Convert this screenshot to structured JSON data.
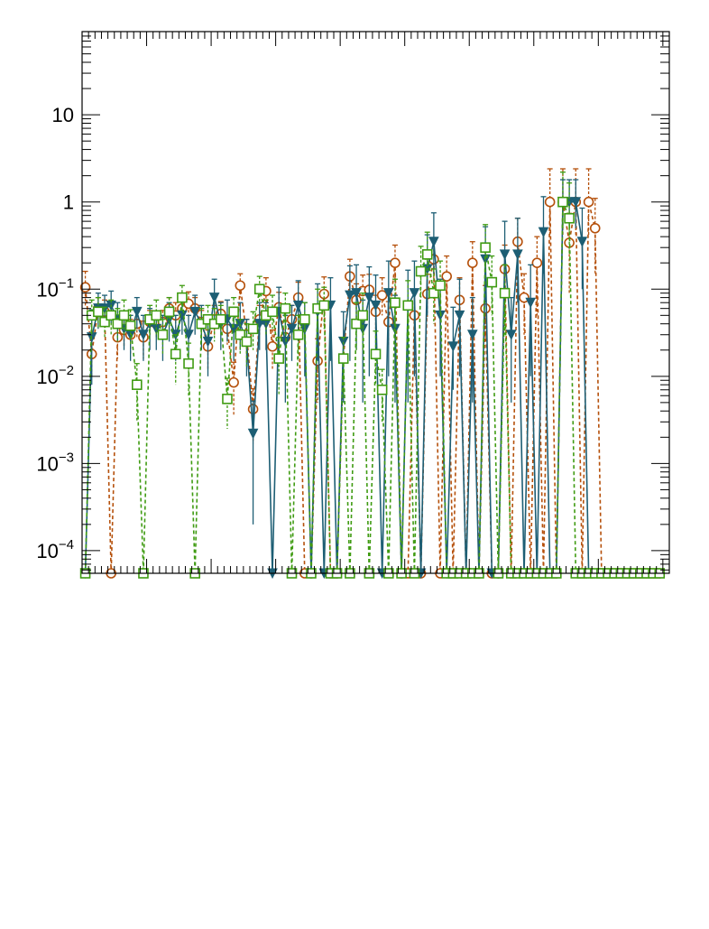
{
  "chart_data": {
    "type": "line",
    "title": "",
    "xlabel": "",
    "ylabel": "",
    "xlim": [
      0,
      91
    ],
    "ylim": [
      5.5e-05,
      90
    ],
    "y_scale": "log",
    "grid": false,
    "legend": "none",
    "y_tick_labels": [
      {
        "value": 0.0001,
        "base": "10",
        "exp": "−4"
      },
      {
        "value": 0.001,
        "base": "10",
        "exp": "−3"
      },
      {
        "value": 0.01,
        "base": "10",
        "exp": "−2"
      },
      {
        "value": 0.1,
        "base": "10",
        "exp": "−1"
      },
      {
        "value": 1,
        "base": "1",
        "exp": ""
      },
      {
        "value": 10,
        "base": "10",
        "exp": ""
      }
    ],
    "colors": {
      "series_a": "#b5500b",
      "series_b": "#1d5e74",
      "series_c": "#3f9b12"
    },
    "series": [
      {
        "marker": "open-circle",
        "line": "dashed",
        "color": "#b5500b",
        "x": [
          0.5,
          1.5,
          2.5,
          3.5,
          4.5,
          5.5,
          6.5,
          7.5,
          8.5,
          9.5,
          10.5,
          11.5,
          12.5,
          13.5,
          14.5,
          15.5,
          16.5,
          17.5,
          18.5,
          19.5,
          20.5,
          21.5,
          22.5,
          23.5,
          24.5,
          25.5,
          26.5,
          27.5,
          28.5,
          29.5,
          30.5,
          31.5,
          32.5,
          33.5,
          34.5,
          35.5,
          36.5,
          37.5,
          38.5,
          39.5,
          40.5,
          41.5,
          42.5,
          43.5,
          44.5,
          45.5,
          46.5,
          47.5,
          48.5,
          49.5,
          50.5,
          51.5,
          52.5,
          53.5,
          54.5,
          55.5,
          56.5,
          57.5,
          58.5,
          59.5,
          60.5,
          61.5,
          62.5,
          63.5,
          64.5,
          65.5,
          66.5,
          67.5,
          68.5,
          69.5,
          70.5,
          71.5,
          72.5,
          73.5,
          74.5,
          75.5,
          76.5,
          77.5,
          78.5,
          79.5,
          80.5,
          81.5,
          82.5,
          83.5,
          84.5,
          85.5,
          86.5,
          87.5,
          88.5,
          89.5
        ],
        "values": [
          0.105,
          0.018,
          0.06,
          0.055,
          5e-05,
          0.028,
          0.034,
          0.03,
          0.04,
          0.028,
          0.042,
          0.04,
          0.042,
          0.06,
          0.05,
          0.06,
          0.068,
          0.06,
          0.042,
          0.022,
          0.045,
          0.052,
          0.035,
          0.0085,
          0.11,
          0.03,
          0.0042,
          0.045,
          0.095,
          0.022,
          0.062,
          0.028,
          0.045,
          0.08,
          5e-05,
          5e-05,
          0.015,
          0.088,
          5e-05,
          5e-05,
          0.016,
          0.14,
          0.075,
          0.095,
          0.098,
          0.055,
          0.085,
          0.042,
          0.2,
          5e-05,
          5e-05,
          0.05,
          5e-05,
          0.088,
          0.22,
          5e-05,
          0.14,
          5e-05,
          0.075,
          5e-05,
          0.2,
          5e-05,
          0.06,
          5e-05,
          5e-05,
          0.17,
          5e-05,
          0.35,
          0.08,
          5e-05,
          0.2,
          5e-05,
          1.0,
          5e-05,
          1.0,
          0.34,
          1.0,
          5e-05,
          1.0,
          0.5,
          5e-05,
          5e-05,
          5e-05,
          5e-05,
          5e-05,
          5e-05,
          5e-05,
          5e-05,
          5e-05,
          5e-05
        ],
        "err_up": [
          0.055,
          0.01,
          0.02,
          0.02,
          0,
          0.015,
          0.015,
          0.015,
          0.015,
          0.015,
          0.015,
          0.015,
          0.015,
          0.02,
          0.02,
          0.02,
          0.025,
          0.02,
          0.015,
          0.012,
          0.02,
          0.02,
          0.015,
          0.006,
          0.04,
          0.015,
          0.003,
          0.02,
          0.04,
          0.012,
          0.03,
          0.015,
          0.02,
          0.04,
          0,
          0,
          0.012,
          0.05,
          0,
          0,
          0.012,
          0.08,
          0.04,
          0.05,
          0.05,
          0.03,
          0.05,
          0.03,
          0.12,
          0,
          0,
          0.04,
          0,
          0.06,
          0.15,
          0,
          0.1,
          0,
          0.06,
          0,
          0.15,
          0,
          0.05,
          0,
          0,
          0.15,
          0,
          0.3,
          0.07,
          0,
          0.2,
          0,
          1.4,
          0,
          1.4,
          0.4,
          1.4,
          0,
          1.4,
          0.6,
          0,
          0,
          0,
          0,
          0,
          0,
          0,
          0,
          0,
          0
        ],
        "err_down": [
          0.04,
          0.008,
          0.015,
          0.015,
          0,
          0.012,
          0.012,
          0.012,
          0.012,
          0.012,
          0.012,
          0.012,
          0.012,
          0.015,
          0.015,
          0.015,
          0.02,
          0.015,
          0.012,
          0.01,
          0.015,
          0.015,
          0.012,
          0.005,
          0.03,
          0.012,
          0.0025,
          0.015,
          0.03,
          0.01,
          0.02,
          0.012,
          0.015,
          0.03,
          0,
          0,
          0.01,
          0.035,
          0,
          0,
          0.01,
          0.06,
          0.03,
          0.04,
          0.04,
          0.02,
          0.035,
          0.02,
          0.08,
          0,
          0,
          0.03,
          0,
          0.04,
          0.1,
          0,
          0.07,
          0,
          0.04,
          0,
          0.1,
          0,
          0.035,
          0,
          0,
          0.1,
          0,
          0.2,
          0.05,
          0,
          0.15,
          0,
          0.6,
          0,
          0.6,
          0.25,
          0.6,
          0,
          0.6,
          0.35,
          0,
          0,
          0,
          0,
          0,
          0,
          0,
          0,
          0,
          0
        ]
      },
      {
        "marker": "filled-triangle-down",
        "line": "solid",
        "color": "#1d5e74",
        "x": [
          0.5,
          1.5,
          2.5,
          3.5,
          4.5,
          5.5,
          6.5,
          7.5,
          8.5,
          9.5,
          10.5,
          11.5,
          12.5,
          13.5,
          14.5,
          15.5,
          16.5,
          17.5,
          18.5,
          19.5,
          20.5,
          21.5,
          22.5,
          23.5,
          24.5,
          25.5,
          26.5,
          27.5,
          28.5,
          29.5,
          30.5,
          31.5,
          32.5,
          33.5,
          34.5,
          35.5,
          36.5,
          37.5,
          38.5,
          39.5,
          40.5,
          41.5,
          42.5,
          43.5,
          44.5,
          45.5,
          46.5,
          47.5,
          48.5,
          49.5,
          50.5,
          51.5,
          52.5,
          53.5,
          54.5,
          55.5,
          56.5,
          57.5,
          58.5,
          59.5,
          60.5,
          61.5,
          62.5,
          63.5,
          64.5,
          65.5,
          66.5,
          67.5,
          68.5,
          69.5,
          70.5,
          71.5,
          72.5,
          73.5,
          74.5,
          75.5,
          76.5,
          77.5,
          78.5,
          79.5,
          80.5,
          81.5,
          82.5,
          83.5,
          84.5,
          85.5,
          86.5,
          87.5,
          88.5,
          89.5
        ],
        "values": [
          5e-05,
          0.028,
          0.06,
          0.06,
          0.065,
          0.045,
          0.035,
          0.03,
          0.055,
          0.03,
          0.04,
          0.035,
          0.03,
          0.045,
          0.03,
          0.05,
          0.03,
          0.055,
          0.04,
          0.025,
          0.08,
          0.04,
          0.045,
          0.035,
          0.04,
          0.025,
          0.0022,
          0.04,
          0.04,
          5e-05,
          0.055,
          0.025,
          0.035,
          0.065,
          0.035,
          5e-05,
          0.055,
          5e-05,
          0.065,
          5e-05,
          0.025,
          0.085,
          0.09,
          0.035,
          0.08,
          0.065,
          5e-05,
          0.09,
          0.035,
          5e-05,
          0.065,
          0.09,
          5e-05,
          0.17,
          0.35,
          0.05,
          5e-05,
          0.022,
          0.05,
          5e-05,
          0.03,
          5e-05,
          0.22,
          5e-05,
          5e-05,
          0.25,
          0.03,
          0.25,
          5e-05,
          0.07,
          5e-05,
          0.45,
          5e-05,
          5e-05,
          1.0,
          1.0,
          1.0,
          0.35,
          5e-05,
          5e-05,
          5e-05,
          5e-05,
          5e-05,
          5e-05,
          5e-05,
          5e-05,
          5e-05,
          5e-05,
          5e-05,
          5e-05
        ],
        "err_up": [
          0,
          0.03,
          0.03,
          0.025,
          0.03,
          0.025,
          0.02,
          0.02,
          0.025,
          0.02,
          0.02,
          0.02,
          0.02,
          0.025,
          0.02,
          0.025,
          0.02,
          0.03,
          0.025,
          0.02,
          0.05,
          0.03,
          0.03,
          0.025,
          0.03,
          0.02,
          0.003,
          0.03,
          0.03,
          0,
          0.05,
          0.025,
          0.03,
          0.06,
          0.035,
          0,
          0.06,
          0,
          0.07,
          0,
          0.03,
          0.1,
          0.1,
          0.04,
          0.1,
          0.08,
          0,
          0.12,
          0.05,
          0,
          0.1,
          0.12,
          0,
          0.25,
          0.4,
          0.08,
          0,
          0.04,
          0.08,
          0,
          0.05,
          0,
          0.3,
          0,
          0,
          0.35,
          0.05,
          0.4,
          0,
          0.12,
          0,
          0.7,
          0,
          0,
          0.8,
          0.8,
          0.8,
          0.5,
          0,
          0,
          0,
          0,
          0,
          0,
          0,
          0,
          0,
          0,
          0,
          0
        ],
        "err_down": [
          0,
          0.02,
          0.025,
          0.02,
          0.025,
          0.02,
          0.015,
          0.015,
          0.02,
          0.015,
          0.02,
          0.015,
          0.015,
          0.02,
          0.015,
          0.02,
          0.015,
          0.025,
          0.02,
          0.015,
          0.04,
          0.02,
          0.02,
          0.02,
          0.02,
          0.015,
          0.002,
          0.02,
          0.02,
          0,
          0.04,
          0.02,
          0.02,
          0.04,
          0.025,
          0,
          0.04,
          0,
          0.05,
          0,
          0.02,
          0.07,
          0.07,
          0.03,
          0.07,
          0.05,
          0,
          0.08,
          0.03,
          0,
          0.06,
          0.08,
          0,
          0.12,
          0.2,
          0.04,
          0,
          0.015,
          0.04,
          0,
          0.025,
          0,
          0.15,
          0,
          0,
          0.18,
          0.025,
          0.18,
          0,
          0.06,
          0,
          0.3,
          0,
          0,
          0.5,
          0.5,
          0.5,
          0.25,
          0,
          0,
          0,
          0,
          0,
          0,
          0,
          0,
          0,
          0,
          0,
          0
        ]
      },
      {
        "marker": "open-square",
        "line": "dashed",
        "color": "#3f9b12",
        "x": [
          0.5,
          1.5,
          2.5,
          3.5,
          4.5,
          5.5,
          6.5,
          7.5,
          8.5,
          9.5,
          10.5,
          11.5,
          12.5,
          13.5,
          14.5,
          15.5,
          16.5,
          17.5,
          18.5,
          19.5,
          20.5,
          21.5,
          22.5,
          23.5,
          24.5,
          25.5,
          26.5,
          27.5,
          28.5,
          29.5,
          30.5,
          31.5,
          32.5,
          33.5,
          34.5,
          35.5,
          36.5,
          37.5,
          38.5,
          39.5,
          40.5,
          41.5,
          42.5,
          43.5,
          44.5,
          45.5,
          46.5,
          47.5,
          48.5,
          49.5,
          50.5,
          51.5,
          52.5,
          53.5,
          54.5,
          55.5,
          56.5,
          57.5,
          58.5,
          59.5,
          60.5,
          61.5,
          62.5,
          63.5,
          64.5,
          65.5,
          66.5,
          67.5,
          68.5,
          69.5,
          70.5,
          71.5,
          72.5,
          73.5,
          74.5,
          75.5,
          76.5,
          77.5,
          78.5,
          79.5,
          80.5,
          81.5,
          82.5,
          83.5,
          84.5,
          85.5,
          86.5,
          87.5,
          88.5,
          89.5
        ],
        "values": [
          5e-05,
          0.05,
          0.055,
          0.042,
          0.05,
          0.04,
          0.05,
          0.038,
          0.008,
          5e-05,
          0.045,
          0.05,
          0.03,
          0.055,
          0.018,
          0.08,
          0.014,
          5e-05,
          0.04,
          0.045,
          0.04,
          0.045,
          0.0055,
          0.055,
          0.03,
          0.025,
          0.035,
          0.1,
          0.05,
          0.055,
          0.016,
          0.06,
          5e-05,
          0.03,
          0.045,
          5e-05,
          0.06,
          0.065,
          5e-05,
          5e-05,
          0.016,
          5e-05,
          0.04,
          0.05,
          5e-05,
          0.018,
          0.007,
          5e-05,
          0.07,
          5e-05,
          0.065,
          5e-05,
          0.16,
          0.25,
          0.09,
          0.11,
          5e-05,
          5e-05,
          5e-05,
          5e-05,
          5e-05,
          5e-05,
          0.3,
          0.12,
          5e-05,
          0.09,
          5e-05,
          5e-05,
          5e-05,
          5e-05,
          5e-05,
          5e-05,
          5e-05,
          5e-05,
          1.0,
          0.65,
          5e-05,
          5e-05,
          5e-05,
          5e-05,
          5e-05,
          5e-05,
          5e-05,
          5e-05,
          5e-05,
          5e-05,
          5e-05,
          5e-05,
          5e-05,
          5e-05
        ],
        "err_up": [
          0,
          0.025,
          0.025,
          0.02,
          0.025,
          0.02,
          0.025,
          0.02,
          0.006,
          0,
          0.02,
          0.025,
          0.015,
          0.025,
          0.012,
          0.03,
          0.01,
          0,
          0.02,
          0.02,
          0.02,
          0.02,
          0.004,
          0.025,
          0.015,
          0.015,
          0.02,
          0.04,
          0.025,
          0.03,
          0.012,
          0.03,
          0,
          0.02,
          0.025,
          0,
          0.04,
          0.04,
          0,
          0,
          0.012,
          0,
          0.03,
          0.04,
          0,
          0.015,
          0.005,
          0,
          0.06,
          0,
          0.06,
          0,
          0.15,
          0.2,
          0.08,
          0.1,
          0,
          0,
          0,
          0,
          0,
          0,
          0.25,
          0.12,
          0,
          0.1,
          0,
          0,
          0,
          0,
          0,
          0,
          0,
          0,
          1.2,
          1.0,
          0,
          0,
          0,
          0,
          0,
          0,
          0,
          0,
          0,
          0,
          0,
          0,
          0,
          0
        ],
        "err_down": [
          0,
          0.02,
          0.02,
          0.015,
          0.02,
          0.015,
          0.02,
          0.015,
          0.005,
          0,
          0.015,
          0.02,
          0.012,
          0.02,
          0.01,
          0.025,
          0.008,
          0,
          0.015,
          0.015,
          0.015,
          0.015,
          0.003,
          0.02,
          0.012,
          0.012,
          0.015,
          0.03,
          0.02,
          0.02,
          0.01,
          0.025,
          0,
          0.015,
          0.02,
          0,
          0.03,
          0.03,
          0,
          0,
          0.01,
          0,
          0.02,
          0.03,
          0,
          0.01,
          0.004,
          0,
          0.04,
          0,
          0.04,
          0,
          0.08,
          0.12,
          0.05,
          0.06,
          0,
          0,
          0,
          0,
          0,
          0,
          0.15,
          0.07,
          0,
          0.06,
          0,
          0,
          0,
          0,
          0,
          0,
          0,
          0,
          0.5,
          0.4,
          0,
          0,
          0,
          0,
          0,
          0,
          0,
          0,
          0,
          0,
          0,
          0,
          0,
          0
        ]
      }
    ]
  }
}
